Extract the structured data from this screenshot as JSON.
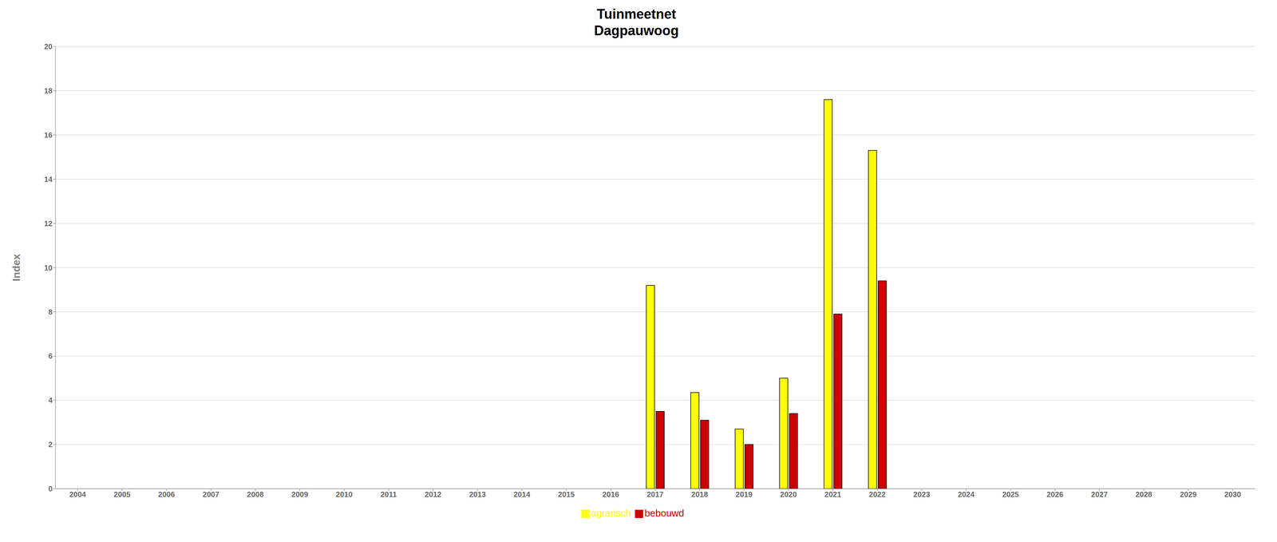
{
  "chart_data": {
    "type": "bar",
    "title": "Tuinmeetnet",
    "subtitle": "Dagpauwoog",
    "ylabel": "Index",
    "categories": [
      "2004",
      "2005",
      "2006",
      "2007",
      "2008",
      "2009",
      "2010",
      "2011",
      "2012",
      "2013",
      "2014",
      "2015",
      "2016",
      "2017",
      "2018",
      "2019",
      "2020",
      "2021",
      "2022",
      "2023",
      "2024",
      "2025",
      "2026",
      "2027",
      "2028",
      "2029",
      "2030"
    ],
    "series": [
      {
        "name": "agrarisch",
        "color": "#ffff00",
        "values": [
          0,
          0,
          0,
          0,
          0,
          0,
          0,
          0,
          0,
          0,
          0,
          0,
          0,
          9.2,
          4.35,
          2.7,
          5.0,
          17.6,
          15.3,
          0,
          0,
          0,
          0,
          0,
          0,
          0,
          0
        ]
      },
      {
        "name": "bebouwd",
        "color": "#cc0000",
        "values": [
          0,
          0,
          0,
          0,
          0,
          0,
          0,
          0,
          0,
          0,
          0,
          0,
          0,
          3.5,
          3.1,
          2.0,
          3.4,
          7.9,
          9.4,
          0,
          0,
          0,
          0,
          0,
          0,
          0,
          0
        ]
      }
    ],
    "ylim": [
      0,
      20
    ],
    "yticks": [
      0,
      2,
      4,
      6,
      8,
      10,
      12,
      14,
      16,
      18,
      20
    ],
    "grid": true,
    "legend": "bottom"
  }
}
